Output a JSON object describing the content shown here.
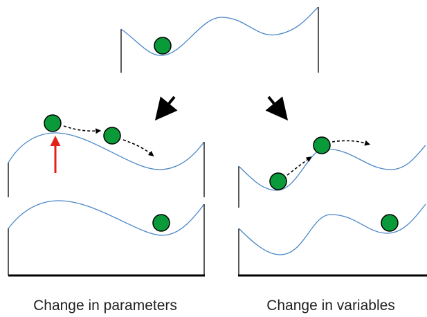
{
  "labels": {
    "left": "Change in parameters",
    "right": "Change in variables"
  }
}
